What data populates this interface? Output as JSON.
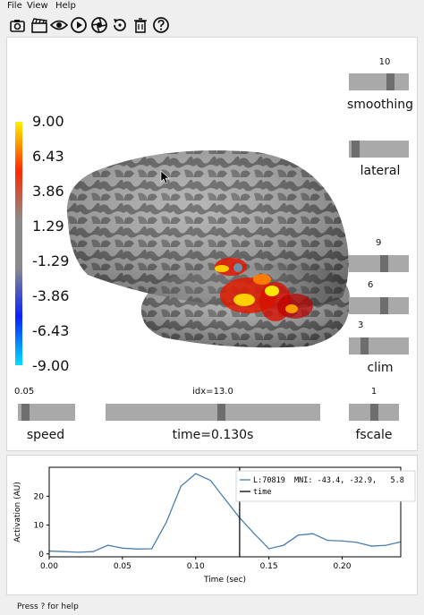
{
  "menu": [
    "File",
    "View",
    "Help"
  ],
  "toolbar": [
    {
      "name": "screenshot-icon"
    },
    {
      "name": "movie-icon"
    },
    {
      "name": "eye-icon"
    },
    {
      "name": "play-icon"
    },
    {
      "name": "aperture-icon"
    },
    {
      "name": "reset-icon"
    },
    {
      "name": "trash-icon"
    },
    {
      "name": "help-icon"
    }
  ],
  "colorbar": {
    "ticks": [
      "9.00",
      "6.43",
      "3.86",
      "1.29",
      "-1.29",
      "-3.86",
      "-6.43",
      "-9.00"
    ]
  },
  "sliders": {
    "smoothing": {
      "label": "smoothing",
      "value_text": "10",
      "fraction": 0.72
    },
    "lateral": {
      "label": "lateral",
      "fraction": 0.05
    },
    "clim": {
      "label": "clim",
      "values": [
        "9",
        "6",
        "3"
      ],
      "fractions": [
        0.6,
        0.6,
        0.23
      ]
    },
    "speed": {
      "label": "speed",
      "value_text": "0.05",
      "fraction": 0.08
    },
    "time": {
      "label": "time=0.130s",
      "value_text": "idx=13.0",
      "fraction": 0.54
    },
    "fscale": {
      "label": "fscale",
      "value_text": "1",
      "fraction": 0.5
    }
  },
  "plot": {
    "xlabel": "Time (sec)",
    "ylabel": "Activation (AU)",
    "legend": [
      "L:70819  MNI: -43.4, -32.9,   5.8",
      "time"
    ]
  },
  "status": "Press ? for help",
  "colors": {
    "trace": "#4c7fb0",
    "cursor": "#000000",
    "cortex_dark": "#5e5e5e",
    "cortex_light": "#a9a9a9"
  },
  "chart_data": {
    "type": "line",
    "xlabel": "Time (sec)",
    "ylabel": "Activation (AU)",
    "xlim": [
      0,
      0.24
    ],
    "ylim": [
      -1,
      30
    ],
    "xticks": [
      "0.00",
      "0.05",
      "0.10",
      "0.15",
      "0.20"
    ],
    "yticks": [
      "0",
      "10",
      "20"
    ],
    "series": [
      {
        "name": "L:70819  MNI: -43.4, -32.9,   5.8",
        "x": [
          0,
          0.01,
          0.02,
          0.03,
          0.04,
          0.05,
          0.06,
          0.07,
          0.08,
          0.09,
          0.1,
          0.11,
          0.12,
          0.13,
          0.14,
          0.15,
          0.16,
          0.17,
          0.18,
          0.19,
          0.2,
          0.21,
          0.22,
          0.23,
          0.24
        ],
        "y": [
          1.0,
          0.8,
          0.6,
          0.8,
          3.0,
          2.0,
          1.7,
          1.8,
          11.0,
          23.5,
          27.8,
          25.5,
          19.0,
          12.5,
          7.0,
          1.8,
          3.0,
          6.5,
          7.0,
          4.7,
          4.5,
          4.0,
          2.7,
          3.0,
          4.2
        ]
      }
    ],
    "vlines": [
      {
        "name": "time",
        "x": 0.13
      }
    ],
    "legend": "top-right",
    "grid": false
  }
}
